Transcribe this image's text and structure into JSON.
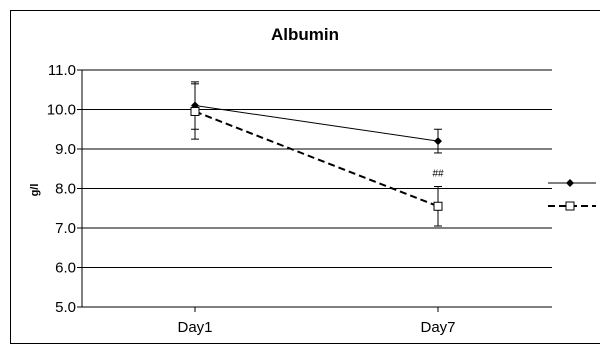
{
  "chart_data": {
    "type": "line",
    "title": "Albumin",
    "ylabel": "g/l",
    "xlabel": "",
    "categories": [
      "Day1",
      "Day7"
    ],
    "ylim": [
      5.0,
      11.0
    ],
    "yticks": [
      "5.0",
      "6.0",
      "7.0",
      "8.0",
      "9.0",
      "10.0",
      "11.0"
    ],
    "grid": true,
    "legend_placement": "right",
    "series": [
      {
        "values": [
          10.1,
          9.2
        ],
        "error": [
          0.6,
          0.3
        ],
        "marker": "diamond-filled",
        "line": "solid",
        "color": "#000000"
      },
      {
        "values": [
          9.95,
          7.55
        ],
        "error": [
          0.7,
          0.5
        ],
        "marker": "square-open",
        "line": "dashed",
        "color": "#000000"
      }
    ],
    "annotations": [
      {
        "text": "##",
        "category": "Day7",
        "y": 8.4
      }
    ]
  }
}
